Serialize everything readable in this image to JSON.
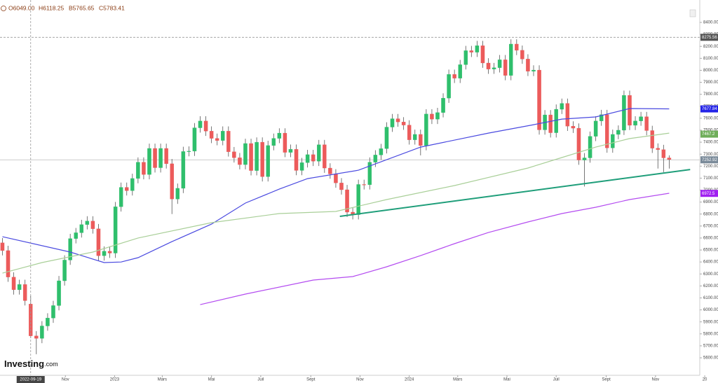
{
  "chart_data": {
    "type": "candlestick",
    "header": [
      "O6049.00",
      "H6118.25",
      "B5765.65",
      "C5783.41"
    ],
    "crosshair": "2022-09-19",
    "brand": "Investing",
    "brand_suffix": ".com",
    "up_color": "#2fbf6c",
    "down_color": "#ec5b5b",
    "xlim": [
      "2022-08-12",
      "2024-12-25"
    ],
    "ylim": [
      5454,
      8587
    ],
    "xticks": [
      {
        "value": "2022-11-01",
        "label": "Nov"
      },
      {
        "value": "2023-01-01",
        "label": "2023"
      },
      {
        "value": "2023-03-01",
        "label": "Mars"
      },
      {
        "value": "2023-05-01",
        "label": "Mai"
      },
      {
        "value": "2023-07-01",
        "label": "Juil"
      },
      {
        "value": "2023-09-01",
        "label": "Sept"
      },
      {
        "value": "2023-11-01",
        "label": "Nov"
      },
      {
        "value": "2024-01-01",
        "label": "2024"
      },
      {
        "value": "2024-03-01",
        "label": "Mars"
      },
      {
        "value": "2024-05-01",
        "label": "Mai"
      },
      {
        "value": "2024-07-01",
        "label": "Juil"
      },
      {
        "value": "2024-09-01",
        "label": "Sept"
      },
      {
        "value": "2024-11-01",
        "label": "Nov"
      },
      {
        "value": "2025-01-01",
        "label": "20"
      }
    ],
    "yticks": [
      {
        "value": 8400,
        "label": "8400.00"
      },
      {
        "value": 8300,
        "label": "8300.00"
      },
      {
        "value": 8200,
        "label": "8200.00"
      },
      {
        "value": 8100,
        "label": "8100.00"
      },
      {
        "value": 8000,
        "label": "8000.00"
      },
      {
        "value": 7900,
        "label": "7900.00"
      },
      {
        "value": 7800,
        "label": "7800.00"
      },
      {
        "value": 7700,
        "label": "7700.00"
      },
      {
        "value": 7600,
        "label": "7600.00"
      },
      {
        "value": 7500,
        "label": "7500.00"
      },
      {
        "value": 7400,
        "label": "7400.00"
      },
      {
        "value": 7300,
        "label": "7300.00"
      },
      {
        "value": 7200,
        "label": "7200.00"
      },
      {
        "value": 7100,
        "label": "7100.00"
      },
      {
        "value": 7000,
        "label": "7000.00"
      },
      {
        "value": 6900,
        "label": "6900.00"
      },
      {
        "value": 6800,
        "label": "6800.00"
      },
      {
        "value": 6700,
        "label": "6700.00"
      },
      {
        "value": 6600,
        "label": "6600.00"
      },
      {
        "value": 6500,
        "label": "6500.00"
      },
      {
        "value": 6400,
        "label": "6400.00"
      },
      {
        "value": 6300,
        "label": "6300.00"
      },
      {
        "value": 6200,
        "label": "6200.00"
      },
      {
        "value": 6100,
        "label": "6100.00"
      },
      {
        "value": 6000,
        "label": "6000.00"
      },
      {
        "value": 5900,
        "label": "5900.00"
      },
      {
        "value": 5800,
        "label": "5800.00"
      },
      {
        "value": 5700,
        "label": "5700.00"
      },
      {
        "value": 5600,
        "label": "5600.00"
      }
    ],
    "x": [
      "2022-08-15",
      "2022-08-22",
      "2022-08-29",
      "2022-09-05",
      "2022-09-12",
      "2022-09-19",
      "2022-09-26",
      "2022-10-03",
      "2022-10-10",
      "2022-10-17",
      "2022-10-24",
      "2022-10-31",
      "2022-11-07",
      "2022-11-14",
      "2022-11-21",
      "2022-11-28",
      "2022-12-05",
      "2022-12-12",
      "2022-12-19",
      "2022-12-26",
      "2023-01-02",
      "2023-01-09",
      "2023-01-16",
      "2023-01-23",
      "2023-01-30",
      "2023-02-06",
      "2023-02-13",
      "2023-02-20",
      "2023-02-27",
      "2023-03-06",
      "2023-03-13",
      "2023-03-20",
      "2023-03-27",
      "2023-04-03",
      "2023-04-10",
      "2023-04-17",
      "2023-04-24",
      "2023-05-01",
      "2023-05-08",
      "2023-05-15",
      "2023-05-22",
      "2023-05-29",
      "2023-06-05",
      "2023-06-12",
      "2023-06-19",
      "2023-06-26",
      "2023-07-03",
      "2023-07-10",
      "2023-07-17",
      "2023-07-24",
      "2023-07-31",
      "2023-08-07",
      "2023-08-14",
      "2023-08-21",
      "2023-08-28",
      "2023-09-04",
      "2023-09-11",
      "2023-09-18",
      "2023-09-25",
      "2023-10-02",
      "2023-10-09",
      "2023-10-16",
      "2023-10-23",
      "2023-10-30",
      "2023-11-06",
      "2023-11-13",
      "2023-11-20",
      "2023-11-27",
      "2023-12-04",
      "2023-12-11",
      "2023-12-18",
      "2023-12-25",
      "2024-01-01",
      "2024-01-08",
      "2024-01-15",
      "2024-01-22",
      "2024-01-29",
      "2024-02-05",
      "2024-02-12",
      "2024-02-19",
      "2024-02-26",
      "2024-03-04",
      "2024-03-11",
      "2024-03-18",
      "2024-03-25",
      "2024-04-01",
      "2024-04-08",
      "2024-04-15",
      "2024-04-22",
      "2024-04-29",
      "2024-05-06",
      "2024-05-13",
      "2024-05-20",
      "2024-05-27",
      "2024-06-03",
      "2024-06-10",
      "2024-06-17",
      "2024-06-24",
      "2024-07-01",
      "2024-07-08",
      "2024-07-15",
      "2024-07-22",
      "2024-07-29",
      "2024-08-05",
      "2024-08-12",
      "2024-08-19",
      "2024-08-26",
      "2024-09-02",
      "2024-09-09",
      "2024-09-16",
      "2024-09-23",
      "2024-09-30",
      "2024-10-07",
      "2024-10-14",
      "2024-10-21",
      "2024-10-28",
      "2024-11-04",
      "2024-11-11",
      "2024-11-18"
    ],
    "open": [
      6560,
      6495,
      6274,
      6168,
      6212,
      6049,
      5783,
      5762,
      5866,
      5932,
      6036,
      6243,
      6416,
      6595,
      6644,
      6712,
      6742,
      6677,
      6452,
      6490,
      6474,
      6861,
      7023,
      6995,
      7097,
      7233,
      7130,
      7348,
      7187,
      7348,
      7220,
      6925,
      7015,
      7322,
      7325,
      7520,
      7577,
      7492,
      7432,
      7414,
      7492,
      7320,
      7270,
      7213,
      7389,
      7163,
      7400,
      7112,
      7372,
      7432,
      7476,
      7315,
      7341,
      7164,
      7229,
      7296,
      7241,
      7379,
      7184,
      7135,
      7060,
      7003,
      6816,
      6795,
      7047,
      7045,
      7233,
      7293,
      7346,
      7526,
      7596,
      7569,
      7543,
      7420,
      7465,
      7372,
      7635,
      7592,
      7647,
      7768,
      7966,
      7934,
      8047,
      8164,
      8151,
      8206,
      8061,
      8010,
      8022,
      8088,
      7957,
      8219,
      8167,
      8094,
      7992,
      8002,
      7503,
      7628,
      7479,
      7675,
      7724,
      7534,
      7517,
      7251,
      7269,
      7449,
      7577,
      7630,
      7352,
      7465,
      7500,
      7791,
      7541,
      7577,
      7613,
      7497,
      7350,
      7338,
      7269
    ],
    "high": [
      6600,
      6535,
      6314,
      6252,
      6252,
      6118.25,
      5823,
      5906,
      5972,
      6076,
      6283,
      6456,
      6635,
      6684,
      6752,
      6782,
      6782,
      6717,
      6530,
      6530,
      6901,
      7063,
      7063,
      7137,
      7273,
      7273,
      7388,
      7388,
      7388,
      7388,
      7260,
      7055,
      7362,
      7365,
      7560,
      7617,
      7617,
      7532,
      7472,
      7532,
      7532,
      7360,
      7310,
      7429,
      7429,
      7440,
      7440,
      7412,
      7472,
      7516,
      7516,
      7381,
      7381,
      7269,
      7336,
      7336,
      7419,
      7419,
      7224,
      7175,
      7100,
      7043,
      6856,
      7087,
      7087,
      7273,
      7333,
      7386,
      7566,
      7636,
      7636,
      7609,
      7583,
      7505,
      7505,
      7675,
      7675,
      7687,
      7808,
      8006,
      8006,
      8087,
      8204,
      8204,
      8246,
      8246,
      8101,
      8062,
      8128,
      8128,
      8259,
      8259,
      8207,
      8134,
      8042,
      8042,
      7668,
      7668,
      7715,
      7764,
      7764,
      7574,
      7557,
      7309,
      7489,
      7617,
      7670,
      7670,
      7505,
      7540,
      7831,
      7831,
      7617,
      7653,
      7653,
      7537,
      7390,
      7378,
      7290
    ],
    "low": [
      6455,
      6234,
      6128,
      6128,
      6037,
      5765.65,
      5630,
      5722,
      5826,
      5892,
      5996,
      6203,
      6376,
      6555,
      6604,
      6672,
      6637,
      6412,
      6412,
      6434,
      6434,
      6821,
      6955,
      6955,
      7057,
      7090,
      7090,
      7147,
      7147,
      7180,
      6800,
      6885,
      6975,
      7282,
      7285,
      7480,
      7452,
      7392,
      7374,
      7374,
      7280,
      7230,
      7173,
      7173,
      7123,
      7123,
      7072,
      7072,
      7332,
      7392,
      7275,
      7275,
      7124,
      7124,
      7189,
      7201,
      7201,
      7144,
      7095,
      7020,
      6963,
      6776,
      6755,
      6755,
      7005,
      7005,
      7193,
      7253,
      7306,
      7486,
      7529,
      7503,
      7380,
      7380,
      7290,
      7332,
      7552,
      7552,
      7607,
      7728,
      7894,
      7894,
      8007,
      8111,
      8111,
      8021,
      7970,
      7970,
      7982,
      7917,
      7917,
      8127,
      8054,
      7952,
      7952,
      7463,
      7463,
      7439,
      7439,
      7635,
      7494,
      7477,
      7211,
      7030,
      7229,
      7409,
      7537,
      7312,
      7312,
      7425,
      7460,
      7501,
      7501,
      7537,
      7457,
      7310,
      7180,
      7150,
      7180
    ],
    "close": [
      6495,
      6274,
      6168,
      6212,
      6077,
      5783.41,
      5762,
      5866,
      5932,
      6036,
      6243,
      6416,
      6595,
      6644,
      6712,
      6742,
      6677,
      6452,
      6490,
      6474,
      6861,
      7023,
      6995,
      7097,
      7233,
      7130,
      7348,
      7187,
      7348,
      7220,
      6925,
      7015,
      7322,
      7325,
      7520,
      7577,
      7492,
      7432,
      7414,
      7492,
      7320,
      7270,
      7213,
      7389,
      7163,
      7400,
      7112,
      7372,
      7432,
      7476,
      7315,
      7341,
      7164,
      7229,
      7296,
      7241,
      7379,
      7184,
      7135,
      7060,
      7003,
      6816,
      6795,
      7047,
      7045,
      7233,
      7293,
      7346,
      7526,
      7596,
      7569,
      7543,
      7420,
      7465,
      7372,
      7635,
      7592,
      7647,
      7768,
      7966,
      7934,
      8047,
      8164,
      8151,
      8206,
      8061,
      8010,
      8022,
      8088,
      7957,
      8219,
      8167,
      8094,
      7992,
      8002,
      7503,
      7628,
      7479,
      7675,
      7724,
      7534,
      7517,
      7251,
      7269,
      7449,
      7577,
      7630,
      7352,
      7465,
      7500,
      7791,
      7541,
      7577,
      7613,
      7497,
      7350,
      7338,
      7269,
      7255
    ],
    "lines": [
      {
        "color": "#4a4ae0",
        "width": 1.2,
        "x": [
          "2022-08-15",
          "2022-11-07",
          "2022-12-19",
          "2023-01-09",
          "2023-01-30",
          "2023-03-13",
          "2023-05-01",
          "2023-06-12",
          "2023-07-24",
          "2023-08-28",
          "2023-10-30",
          "2024-01-15",
          "2024-04-08",
          "2024-06-03",
          "2024-07-08",
          "2024-08-19",
          "2024-09-30",
          "2024-11-18"
        ],
        "values": [
          6611,
          6483,
          6395,
          6400,
          6436,
          6570,
          6716,
          6892,
          7008,
          7096,
          7166,
          7359,
          7476,
          7546,
          7593,
          7611,
          7681,
          7678
        ]
      },
      {
        "color": "#a9cf98",
        "width": 1.2,
        "x": [
          "2022-08-15",
          "2022-10-03",
          "2022-12-05",
          "2023-01-30",
          "2023-05-01",
          "2023-07-24",
          "2023-10-02",
          "2023-12-04",
          "2024-02-26",
          "2024-05-27",
          "2024-07-08",
          "2024-08-19",
          "2024-09-30",
          "2024-11-18"
        ],
        "values": [
          6307,
          6395,
          6483,
          6600,
          6728,
          6804,
          6822,
          6921,
          7038,
          7184,
          7272,
          7359,
          7430,
          7476
        ]
      },
      {
        "color": "#b44cf0",
        "width": 1.2,
        "x": [
          "2023-04-17",
          "2023-06-12",
          "2023-09-04",
          "2023-10-23",
          "2023-12-04",
          "2024-01-15",
          "2024-02-26",
          "2024-04-08",
          "2024-05-27",
          "2024-07-08",
          "2024-08-19",
          "2024-09-30",
          "2024-11-18"
        ],
        "values": [
          6044,
          6132,
          6249,
          6278,
          6360,
          6453,
          6553,
          6646,
          6734,
          6804,
          6857,
          6921,
          6974
        ]
      },
      {
        "color": "#1f9e7a",
        "width": 2,
        "x": [
          "2023-10-07",
          "2024-12-14"
        ],
        "values": [
          6781,
          7172
        ]
      }
    ],
    "price_tags": [
      {
        "value": 8275.56,
        "color": "#555555",
        "line": "dashed"
      },
      {
        "value": 7677.84,
        "color": "#2424e8"
      },
      {
        "value": 7467.2,
        "color": "#6fae5a"
      },
      {
        "value": 7252.92,
        "color": "#7a8a99",
        "line": "solid"
      },
      {
        "value": 6972.5,
        "color": "#a020f0"
      }
    ]
  }
}
